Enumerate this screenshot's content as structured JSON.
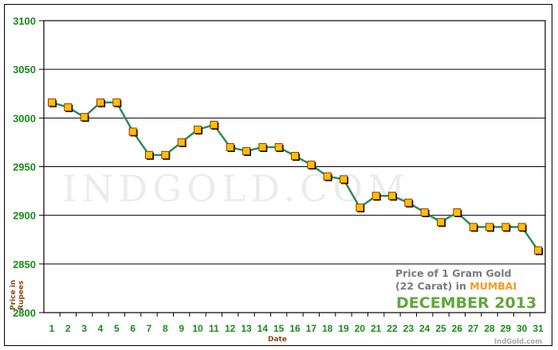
{
  "chart_data": {
    "type": "line",
    "title": "Price of 1 Gram Gold (22 Carat) in MUMBAI",
    "subtitle": "DECEMBER 2013",
    "xlabel": "Date",
    "ylabel": "Price in Rupees",
    "categories": [
      "1",
      "2",
      "3",
      "4",
      "5",
      "6",
      "7",
      "8",
      "9",
      "10",
      "11",
      "12",
      "13",
      "14",
      "15",
      "16",
      "17",
      "18",
      "19",
      "20",
      "21",
      "22",
      "23",
      "24",
      "25",
      "26",
      "27",
      "28",
      "29",
      "30",
      "31"
    ],
    "series": [
      {
        "name": "Price of 1 Gram Gold (22 Carat)",
        "values": [
          3016,
          3011,
          3001,
          3016,
          3016,
          2986,
          2962,
          2962,
          2975,
          2988,
          2993,
          2970,
          2966,
          2970,
          2970,
          2961,
          2952,
          2940,
          2937,
          2908,
          2920,
          2920,
          2913,
          2903,
          2893,
          2903,
          2888,
          2888,
          2888,
          2888,
          2864
        ],
        "line_color": "#2e8b57",
        "marker_color": "#ffc000",
        "marker_border": "#8b3a00"
      }
    ],
    "ylim": [
      2800,
      3100
    ],
    "yticks": [
      2800,
      2850,
      2900,
      2950,
      3000,
      3050,
      3100
    ],
    "grid": true,
    "legend": "none"
  },
  "caption": {
    "line1": "Price of 1 Gram Gold",
    "line2_prefix": "(22 Carat) in ",
    "city": "MUMBAI",
    "month": "DECEMBER 2013"
  },
  "watermark": "IndGold.com",
  "credit": "IndGold.com",
  "axis": {
    "ylabel_line1": "Price in",
    "ylabel_line2": "Rupees",
    "xlabel": "Date"
  }
}
